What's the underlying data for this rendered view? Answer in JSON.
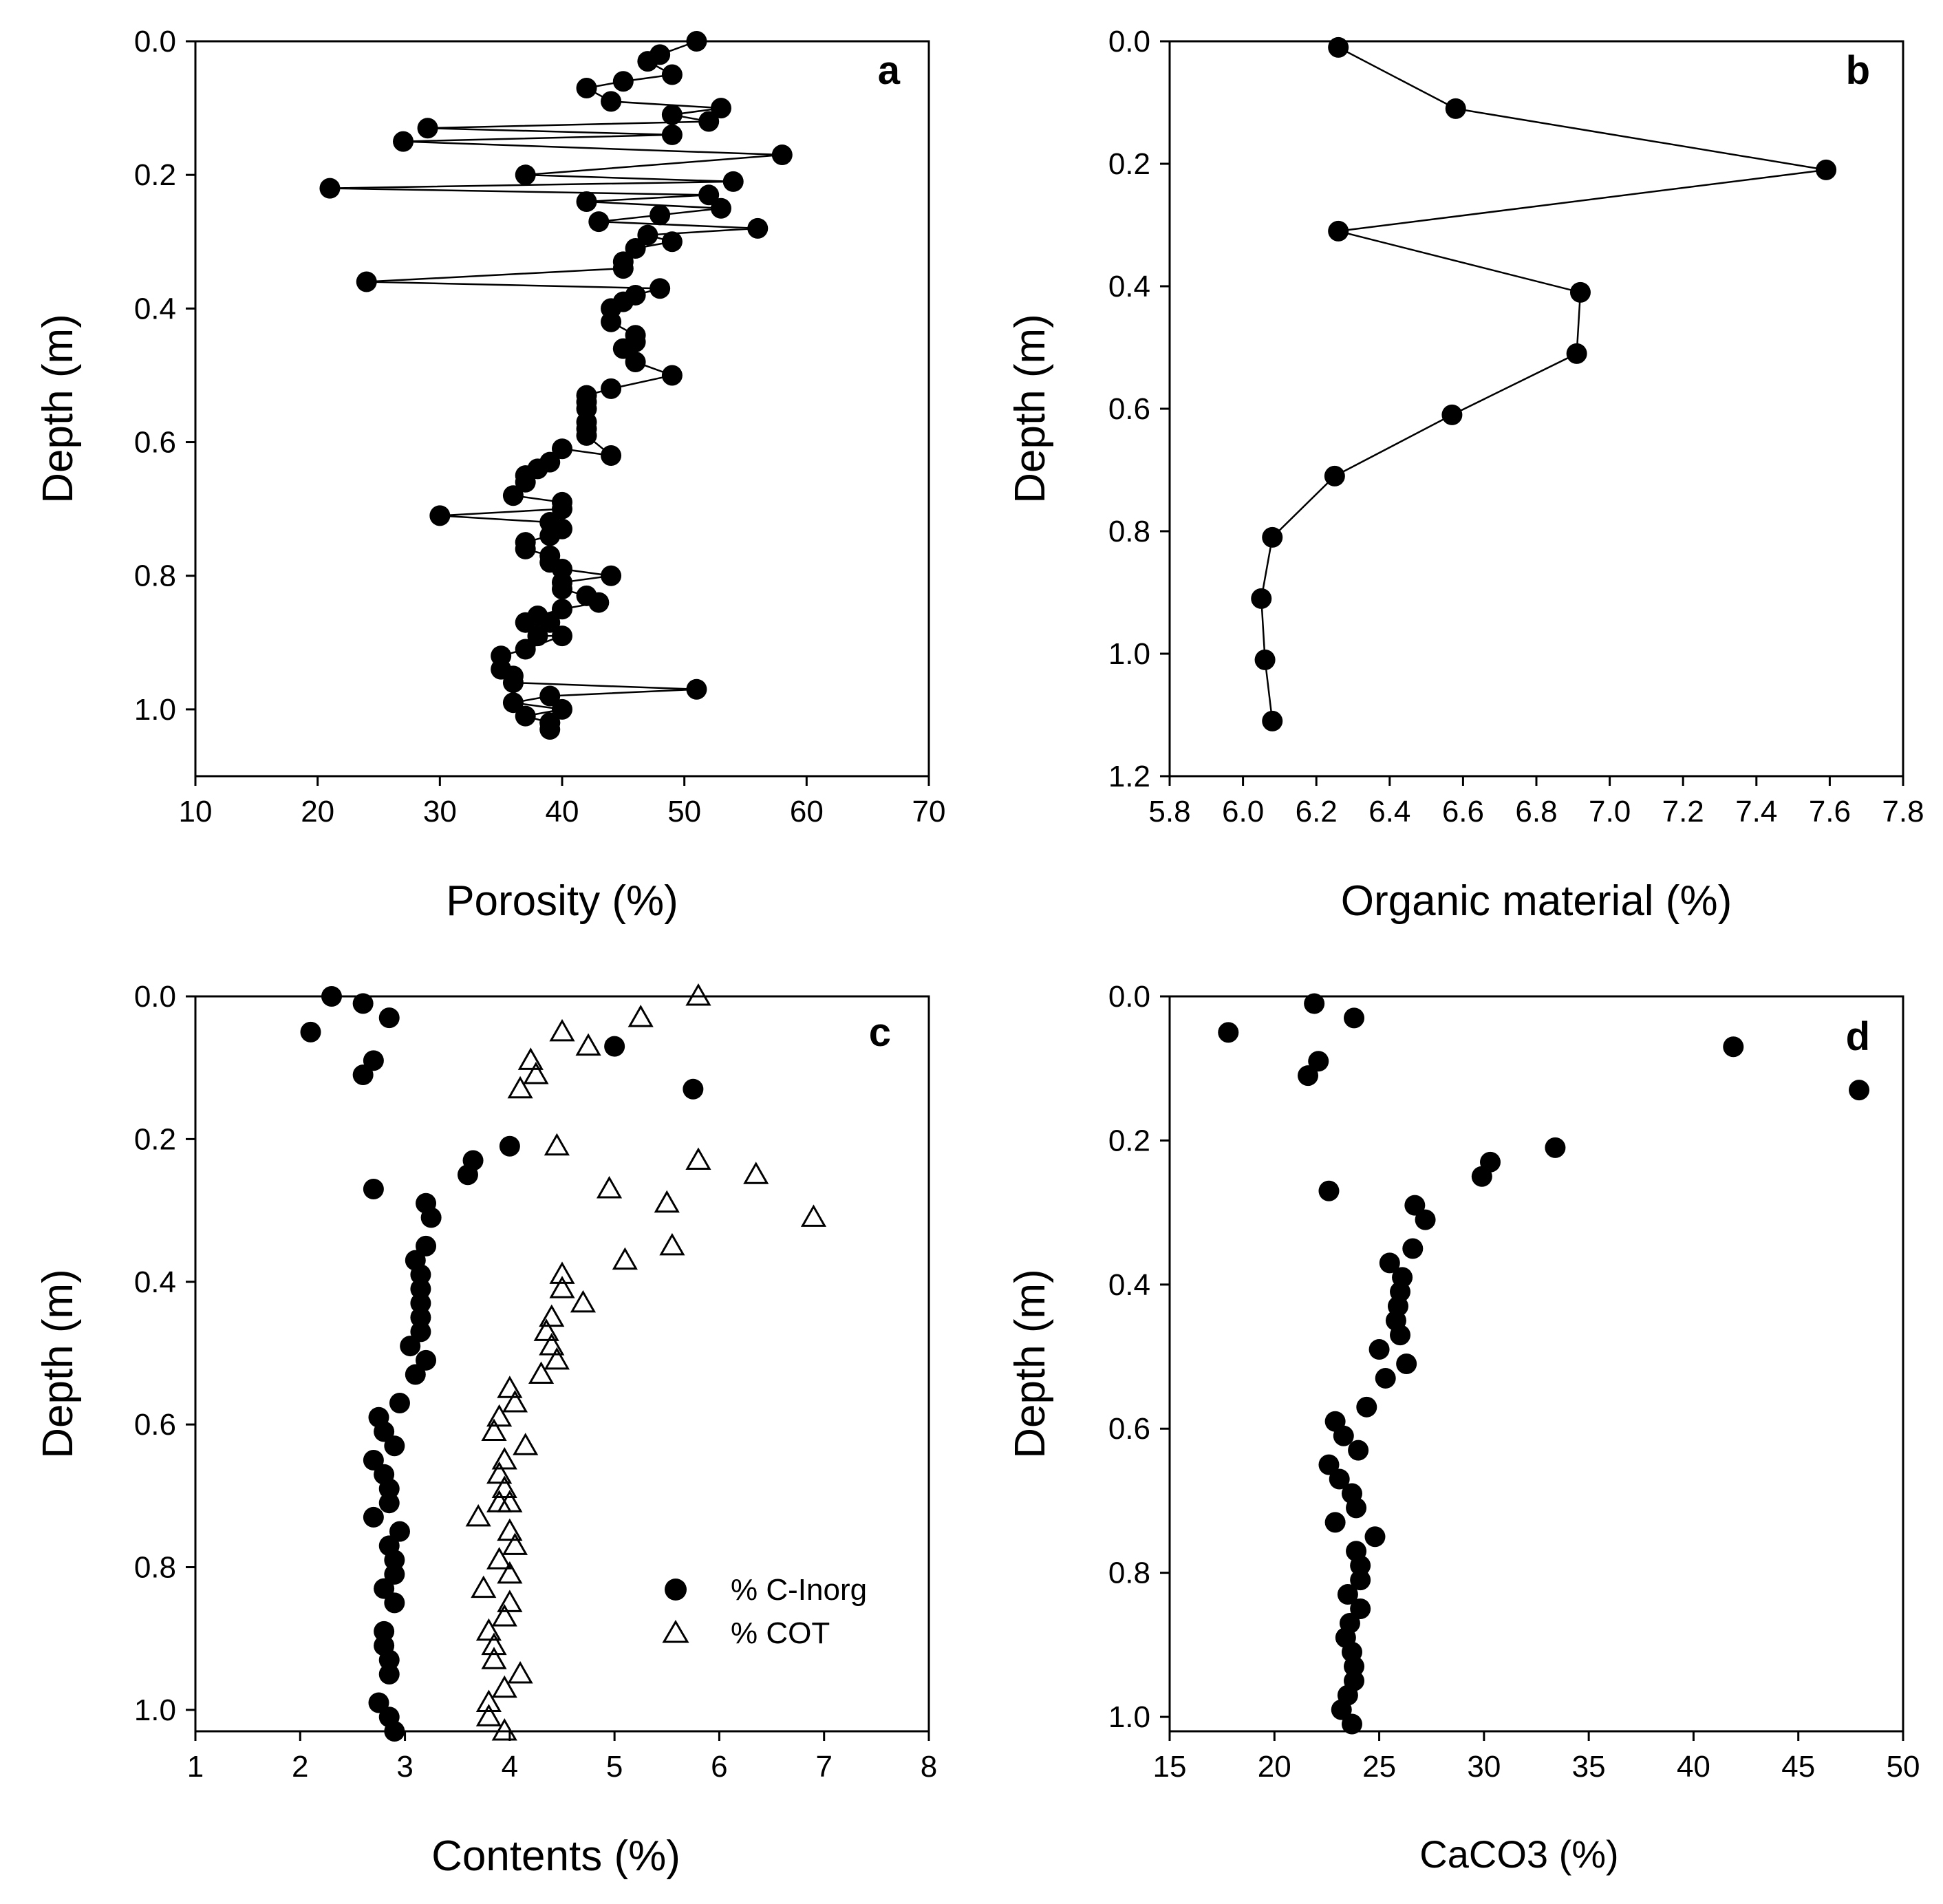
{
  "chart_data": [
    {
      "id": "a",
      "type": "line",
      "panel_label": "a",
      "xlabel": "Porosity (%)",
      "ylabel": "Depth (m)",
      "xlim": [
        10,
        70
      ],
      "ylim": [
        0,
        1.1
      ],
      "y_inverted": true,
      "xticks": [
        10,
        20,
        30,
        40,
        50,
        60,
        70
      ],
      "xtick_labels": [
        "10",
        "20",
        "30",
        "40",
        "50",
        "60",
        "70"
      ],
      "yticks": [
        0,
        0.2,
        0.4,
        0.6,
        0.8,
        1.0
      ],
      "ytick_labels": [
        "0.0",
        "0.2",
        "0.4",
        "0.6",
        "0.8",
        "1.0"
      ],
      "series": [
        {
          "name": "Porosity",
          "marker": "filled-circle",
          "line": true,
          "x": [
            51,
            48,
            47,
            49,
            45,
            42,
            44,
            53,
            49,
            52,
            29,
            49,
            27,
            58,
            37,
            54,
            21,
            52,
            42,
            53,
            48,
            43,
            56,
            47,
            49,
            46,
            45,
            45,
            24,
            48,
            46,
            45,
            44,
            44,
            46,
            46,
            45,
            46,
            49,
            44,
            42,
            42,
            42,
            42,
            42,
            42,
            44,
            40,
            39,
            38,
            37,
            37,
            36,
            40,
            40,
            30,
            39,
            40,
            39,
            37,
            37,
            39,
            39,
            40,
            44,
            40,
            40,
            42,
            43,
            40,
            38,
            39,
            37,
            38,
            40,
            37,
            35,
            35,
            36,
            36,
            51,
            39,
            36,
            40,
            37,
            39,
            39,
            39
          ],
          "y": [
            0.0,
            0.02,
            0.03,
            0.05,
            0.06,
            0.07,
            0.09,
            0.1,
            0.11,
            0.12,
            0.13,
            0.14,
            0.15,
            0.17,
            0.2,
            0.21,
            0.22,
            0.23,
            0.24,
            0.25,
            0.26,
            0.27,
            0.28,
            0.29,
            0.3,
            0.31,
            0.33,
            0.34,
            0.36,
            0.37,
            0.38,
            0.39,
            0.4,
            0.42,
            0.44,
            0.45,
            0.46,
            0.48,
            0.5,
            0.52,
            0.53,
            0.54,
            0.55,
            0.57,
            0.58,
            0.59,
            0.62,
            0.61,
            0.63,
            0.64,
            0.65,
            0.66,
            0.68,
            0.69,
            0.7,
            0.71,
            0.72,
            0.73,
            0.74,
            0.75,
            0.76,
            0.77,
            0.78,
            0.79,
            0.8,
            0.81,
            0.82,
            0.83,
            0.84,
            0.85,
            0.86,
            0.87,
            0.87,
            0.89,
            0.89,
            0.91,
            0.92,
            0.94,
            0.95,
            0.96,
            0.97,
            0.98,
            0.99,
            1.0,
            1.01,
            1.02,
            1.02,
            1.03
          ]
        }
      ]
    },
    {
      "id": "b",
      "type": "line",
      "panel_label": "b",
      "xlabel": "Organic material (%)",
      "ylabel": "Depth (m)",
      "xlim": [
        5.8,
        7.8
      ],
      "ylim": [
        0,
        1.2
      ],
      "y_inverted": true,
      "xticks": [
        5.8,
        6.0,
        6.2,
        6.4,
        6.6,
        6.8,
        7.0,
        7.2,
        7.4,
        7.6,
        7.8
      ],
      "xtick_labels": [
        "5.8",
        "6.0",
        "6.2",
        "6.4",
        "6.6",
        "6.8",
        "7.0",
        "7.2",
        "7.4",
        "7.6",
        "7.8"
      ],
      "yticks": [
        0,
        0.2,
        0.4,
        0.6,
        0.8,
        1.0,
        1.2
      ],
      "ytick_labels": [
        "0.0",
        "0.2",
        "0.4",
        "0.6",
        "0.8",
        "1.0",
        "1.2"
      ],
      "series": [
        {
          "name": "Organic material",
          "marker": "filled-circle",
          "line": true,
          "x": [
            6.26,
            6.58,
            7.59,
            6.26,
            6.92,
            6.91,
            6.57,
            6.25,
            6.08,
            6.05,
            6.06,
            6.08
          ],
          "y": [
            0.01,
            0.11,
            0.21,
            0.31,
            0.41,
            0.51,
            0.61,
            0.71,
            0.81,
            0.91,
            1.01,
            1.11
          ]
        }
      ]
    },
    {
      "id": "c",
      "type": "scatter",
      "panel_label": "c",
      "xlabel": "Contents (%)",
      "ylabel": "Depth (m)",
      "xlim": [
        1,
        8
      ],
      "ylim": [
        0,
        1.03
      ],
      "y_inverted": true,
      "xticks": [
        1,
        2,
        3,
        4,
        5,
        6,
        7,
        8
      ],
      "xtick_labels": [
        "1",
        "2",
        "3",
        "4",
        "5",
        "6",
        "7",
        "8"
      ],
      "yticks": [
        0,
        0.2,
        0.4,
        0.6,
        0.8,
        1.0
      ],
      "ytick_labels": [
        "0.0",
        "0.2",
        "0.4",
        "0.6",
        "0.8",
        "1.0"
      ],
      "legend_position": "lower-right",
      "series": [
        {
          "name": "% C-Inorg",
          "marker": "filled-circle",
          "x": [
            2.3,
            2.6,
            2.85,
            2.1,
            5.0,
            2.7,
            2.6,
            5.75,
            4.0,
            3.65,
            3.6,
            2.7,
            3.2,
            3.25,
            3.2,
            3.1,
            3.15,
            3.15,
            3.15,
            3.15,
            3.15,
            3.05,
            3.2,
            3.1,
            2.95,
            2.75,
            2.8,
            2.9,
            2.7,
            2.8,
            2.85,
            2.85,
            2.7,
            2.95,
            2.85,
            2.9,
            2.9,
            2.8,
            2.9,
            2.8,
            2.8,
            2.85,
            2.85,
            2.75,
            2.85,
            2.9
          ],
          "y": [
            0.0,
            0.01,
            0.03,
            0.05,
            0.07,
            0.09,
            0.11,
            0.13,
            0.21,
            0.23,
            0.25,
            0.27,
            0.29,
            0.31,
            0.35,
            0.37,
            0.39,
            0.41,
            0.43,
            0.45,
            0.47,
            0.49,
            0.51,
            0.53,
            0.57,
            0.59,
            0.61,
            0.63,
            0.65,
            0.67,
            0.69,
            0.71,
            0.73,
            0.75,
            0.77,
            0.79,
            0.81,
            0.83,
            0.85,
            0.89,
            0.91,
            0.93,
            0.95,
            0.99,
            1.01,
            1.03
          ]
        },
        {
          "name": "% COT",
          "marker": "open-triangle",
          "x": [
            5.8,
            5.25,
            4.5,
            4.75,
            4.2,
            4.25,
            4.1,
            4.45,
            5.8,
            6.35,
            4.95,
            5.5,
            6.9,
            5.55,
            5.1,
            4.5,
            4.5,
            4.7,
            4.4,
            4.35,
            4.4,
            4.45,
            4.3,
            4.0,
            4.05,
            3.9,
            3.85,
            4.15,
            3.95,
            3.9,
            3.95,
            4.0,
            3.9,
            3.7,
            4.0,
            4.05,
            3.9,
            4.0,
            3.75,
            4.0,
            3.95,
            3.8,
            3.85,
            3.85,
            4.1,
            3.95,
            3.8,
            3.8,
            3.95
          ],
          "y": [
            0.0,
            0.03,
            0.05,
            0.07,
            0.09,
            0.11,
            0.13,
            0.21,
            0.23,
            0.25,
            0.27,
            0.29,
            0.31,
            0.35,
            0.37,
            0.39,
            0.41,
            0.43,
            0.45,
            0.47,
            0.49,
            0.51,
            0.53,
            0.55,
            0.57,
            0.59,
            0.61,
            0.63,
            0.65,
            0.67,
            0.69,
            0.71,
            0.71,
            0.73,
            0.75,
            0.77,
            0.79,
            0.81,
            0.83,
            0.85,
            0.87,
            0.89,
            0.91,
            0.93,
            0.95,
            0.97,
            0.99,
            1.01,
            1.03
          ]
        }
      ]
    },
    {
      "id": "d",
      "type": "scatter",
      "panel_label": "d",
      "xlabel": "CaCO3 (%)",
      "ylabel": "Depth (m)",
      "xlim": [
        15,
        50
      ],
      "ylim": [
        0,
        1.02
      ],
      "y_inverted": true,
      "xticks": [
        15,
        20,
        25,
        30,
        35,
        40,
        45,
        50
      ],
      "xtick_labels": [
        "15",
        "20",
        "25",
        "30",
        "35",
        "40",
        "45",
        "50"
      ],
      "yticks": [
        0,
        0.2,
        0.4,
        0.6,
        0.8,
        1.0
      ],
      "ytick_labels": [
        "0.0",
        "0.2",
        "0.4",
        "0.6",
        "0.8",
        "1.0"
      ],
      "series": [
        {
          "name": "CaCO3",
          "marker": "filled-circle",
          "x": [
            21.9,
            23.8,
            17.8,
            41.9,
            22.1,
            21.6,
            47.9,
            33.4,
            30.3,
            29.9,
            22.6,
            26.7,
            27.2,
            26.6,
            25.5,
            26.1,
            26.0,
            25.9,
            25.8,
            26.0,
            25.0,
            26.3,
            25.3,
            24.4,
            22.9,
            23.3,
            24.0,
            22.6,
            23.1,
            23.7,
            23.9,
            22.9,
            24.8,
            23.9,
            24.1,
            24.1,
            23.5,
            24.1,
            23.6,
            23.4,
            23.7,
            23.8,
            23.8,
            23.5,
            23.2,
            23.7
          ],
          "y": [
            0.01,
            0.03,
            0.05,
            0.07,
            0.09,
            0.11,
            0.13,
            0.21,
            0.23,
            0.25,
            0.27,
            0.29,
            0.31,
            0.35,
            0.37,
            0.39,
            0.41,
            0.43,
            0.45,
            0.47,
            0.49,
            0.51,
            0.53,
            0.57,
            0.59,
            0.61,
            0.63,
            0.65,
            0.67,
            0.69,
            0.71,
            0.73,
            0.75,
            0.77,
            0.79,
            0.81,
            0.83,
            0.85,
            0.87,
            0.89,
            0.91,
            0.93,
            0.95,
            0.97,
            0.99,
            1.01
          ]
        }
      ]
    }
  ]
}
